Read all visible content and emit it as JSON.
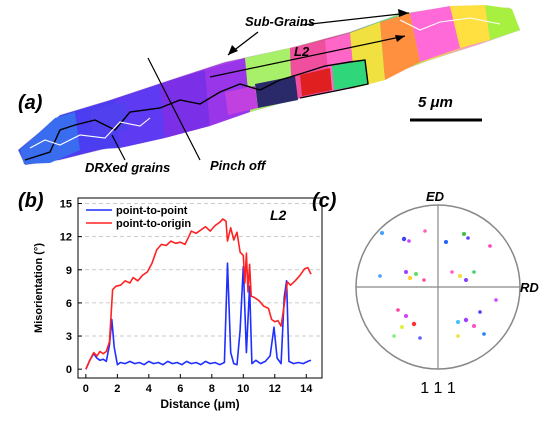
{
  "panel_a": {
    "label": "(a)",
    "annotations": {
      "sub_grains": "Sub-Grains",
      "l2": "L2",
      "drx": "DRXed grains",
      "pinch": "Pinch off"
    },
    "scale_bar": "5 μm",
    "colors": {
      "drx_boundary": "#000000",
      "subgrain_boundary": "#ffffff"
    }
  },
  "panel_b": {
    "label": "(b)",
    "plot_label": "L2"
  },
  "panel_c": {
    "label": "(c)",
    "ed": "ED",
    "rd": "RD",
    "index": "1 1 1"
  },
  "chart_data": {
    "type": "line",
    "xlabel": "Distance (μm)",
    "ylabel": "Misorientation (°)",
    "xlim": [
      -0.5,
      15
    ],
    "ylim": [
      -0.8,
      15.5
    ],
    "xticks": [
      "0",
      "2",
      "4",
      "6",
      "8",
      "10",
      "12",
      "14"
    ],
    "yticks": [
      "0",
      "3",
      "6",
      "9",
      "12",
      "15"
    ],
    "grid": "horizontal dashed",
    "legend": "top-left",
    "series": [
      {
        "name": "point-to-point",
        "color": "#1f2fff",
        "points": [
          [
            0,
            0
          ],
          [
            0.25,
            0.8
          ],
          [
            0.5,
            1.4
          ],
          [
            0.7,
            1.0
          ],
          [
            0.9,
            0.8
          ],
          [
            1.1,
            0.9
          ],
          [
            1.3,
            0.7
          ],
          [
            1.5,
            2.2
          ],
          [
            1.65,
            4.5
          ],
          [
            1.8,
            2.0
          ],
          [
            2.0,
            0.4
          ],
          [
            2.2,
            0.6
          ],
          [
            2.5,
            0.5
          ],
          [
            2.8,
            0.7
          ],
          [
            3.1,
            0.5
          ],
          [
            3.4,
            0.6
          ],
          [
            3.7,
            0.4
          ],
          [
            4.0,
            0.7
          ],
          [
            4.3,
            0.5
          ],
          [
            4.6,
            0.6
          ],
          [
            4.9,
            0.4
          ],
          [
            5.2,
            0.7
          ],
          [
            5.5,
            0.5
          ],
          [
            5.8,
            0.6
          ],
          [
            6.1,
            0.4
          ],
          [
            6.4,
            0.7
          ],
          [
            6.7,
            0.5
          ],
          [
            7.0,
            0.6
          ],
          [
            7.3,
            0.4
          ],
          [
            7.6,
            0.7
          ],
          [
            7.9,
            0.5
          ],
          [
            8.2,
            0.6
          ],
          [
            8.5,
            0.4
          ],
          [
            8.8,
            0.6
          ],
          [
            9.0,
            9.6
          ],
          [
            9.2,
            1.5
          ],
          [
            9.4,
            0.5
          ],
          [
            9.6,
            0.4
          ],
          [
            9.8,
            3.5
          ],
          [
            10.0,
            9.3
          ],
          [
            10.2,
            1.5
          ],
          [
            10.4,
            7.5
          ],
          [
            10.55,
            0.5
          ],
          [
            10.8,
            0.8
          ],
          [
            11.1,
            0.5
          ],
          [
            11.4,
            0.7
          ],
          [
            11.7,
            1.2
          ],
          [
            11.95,
            3.8
          ],
          [
            12.15,
            1.0
          ],
          [
            12.4,
            0.5
          ],
          [
            12.6,
            6.5
          ],
          [
            12.75,
            8.0
          ],
          [
            12.9,
            0.7
          ],
          [
            13.2,
            0.5
          ],
          [
            13.5,
            0.6
          ],
          [
            13.8,
            0.5
          ],
          [
            14.1,
            0.7
          ],
          [
            14.3,
            0.8
          ]
        ]
      },
      {
        "name": "point-to-origin",
        "color": "#ff2222",
        "points": [
          [
            0,
            0
          ],
          [
            0.25,
            0.8
          ],
          [
            0.5,
            1.5
          ],
          [
            0.7,
            1.2
          ],
          [
            0.9,
            1.6
          ],
          [
            1.1,
            1.4
          ],
          [
            1.3,
            1.6
          ],
          [
            1.5,
            2.5
          ],
          [
            1.7,
            7.2
          ],
          [
            1.9,
            7.5
          ],
          [
            2.2,
            7.6
          ],
          [
            2.5,
            8.0
          ],
          [
            2.8,
            7.8
          ],
          [
            3.0,
            8.3
          ],
          [
            3.3,
            8.0
          ],
          [
            3.6,
            8.5
          ],
          [
            3.9,
            8.8
          ],
          [
            4.2,
            9.6
          ],
          [
            4.5,
            10.8
          ],
          [
            4.8,
            11.3
          ],
          [
            5.1,
            11.2
          ],
          [
            5.4,
            11.6
          ],
          [
            5.7,
            11.4
          ],
          [
            6.0,
            11.5
          ],
          [
            6.3,
            11.3
          ],
          [
            6.5,
            11.9
          ],
          [
            6.7,
            12.5
          ],
          [
            7.0,
            12.3
          ],
          [
            7.3,
            12.6
          ],
          [
            7.6,
            12.9
          ],
          [
            7.9,
            12.5
          ],
          [
            8.2,
            13.0
          ],
          [
            8.5,
            13.3
          ],
          [
            8.7,
            13.6
          ],
          [
            8.9,
            13.4
          ],
          [
            9.0,
            11.6
          ],
          [
            9.2,
            12.8
          ],
          [
            9.4,
            11.7
          ],
          [
            9.6,
            12.4
          ],
          [
            9.8,
            10.6
          ],
          [
            10.0,
            10.3
          ],
          [
            10.1,
            7.8
          ],
          [
            10.2,
            10.5
          ],
          [
            10.3,
            7.0
          ],
          [
            10.4,
            9.5
          ],
          [
            10.5,
            6.6
          ],
          [
            10.7,
            6.5
          ],
          [
            11.0,
            6.2
          ],
          [
            11.3,
            5.7
          ],
          [
            11.6,
            5.5
          ],
          [
            11.8,
            4.5
          ],
          [
            12.0,
            4.3
          ],
          [
            12.2,
            4.4
          ],
          [
            12.4,
            3.9
          ],
          [
            12.6,
            5.8
          ],
          [
            12.8,
            7.9
          ],
          [
            13.0,
            7.6
          ],
          [
            13.3,
            8.0
          ],
          [
            13.6,
            8.5
          ],
          [
            13.9,
            9.1
          ],
          [
            14.1,
            9.2
          ],
          [
            14.3,
            8.6
          ]
        ]
      }
    ]
  }
}
